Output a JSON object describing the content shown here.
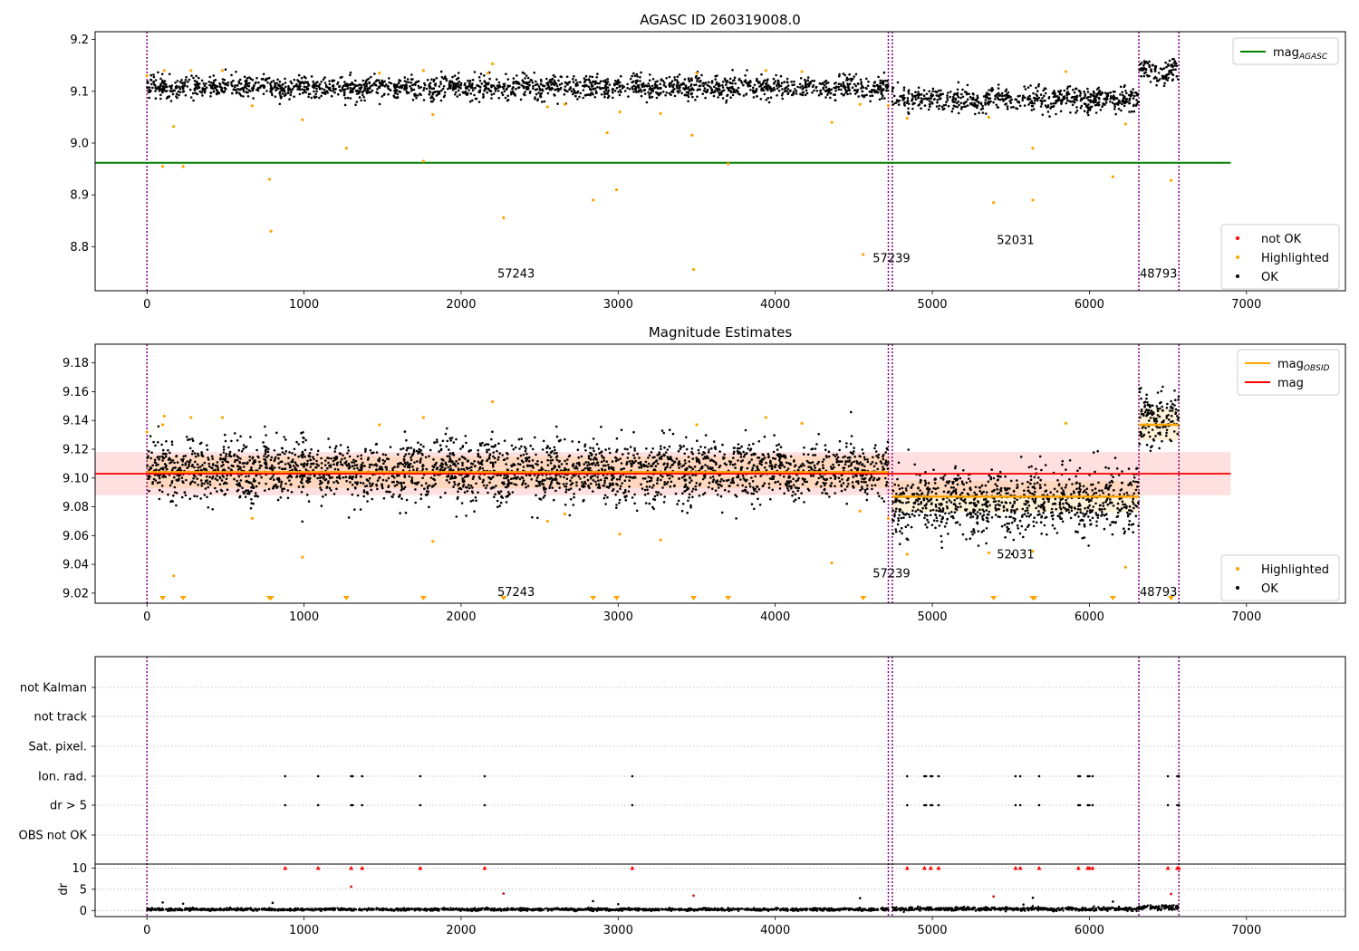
{
  "figure": {
    "x_ticks": [
      0,
      1000,
      2000,
      3000,
      4000,
      5000,
      6000,
      7000
    ],
    "xlim": [
      -330,
      7630
    ],
    "obs_boundaries": [
      0,
      4720,
      4745,
      6315,
      6570
    ],
    "obs_labels": [
      {
        "text": "57243",
        "x": 2350
      },
      {
        "text": "57239",
        "x": 4740
      },
      {
        "text": "52031",
        "x": 5530
      },
      {
        "text": "48793",
        "x": 6440
      }
    ]
  },
  "chart_data": [
    {
      "type": "scatter",
      "title": "AGASC ID 260319008.0",
      "ylim": [
        8.715,
        9.215
      ],
      "y_ticks": [
        8.8,
        8.9,
        9.0,
        9.1,
        9.2
      ],
      "y_tick_labels": [
        "8.8",
        "8.9",
        "9.0",
        "9.1",
        "9.2"
      ],
      "mag_agasc": 8.962,
      "mag_agasc_line_x": [
        -330,
        6900
      ],
      "label_y": [
        8.74,
        8.77,
        8.805,
        8.74
      ],
      "segments": [
        {
          "x0": 0,
          "x1": 4720,
          "center": 9.108,
          "spread": 0.011
        },
        {
          "x0": 4745,
          "x1": 6315,
          "center": 9.085,
          "spread": 0.011
        },
        {
          "x0": 6315,
          "x1": 6570,
          "center": 9.14,
          "spread": 0.011
        }
      ],
      "n_points": 2600,
      "highlighted": [
        [
          0,
          9.13
        ],
        [
          100,
          8.955
        ],
        [
          110,
          9.14
        ],
        [
          170,
          9.032
        ],
        [
          230,
          8.955
        ],
        [
          280,
          9.14
        ],
        [
          480,
          9.14
        ],
        [
          670,
          9.072
        ],
        [
          780,
          8.93
        ],
        [
          790,
          8.83
        ],
        [
          990,
          9.045
        ],
        [
          1270,
          8.99
        ],
        [
          1480,
          9.135
        ],
        [
          1760,
          9.14
        ],
        [
          1760,
          8.965
        ],
        [
          1820,
          9.055
        ],
        [
          2170,
          9.135
        ],
        [
          2200,
          9.153
        ],
        [
          2270,
          8.856
        ],
        [
          2550,
          9.07
        ],
        [
          2660,
          9.075
        ],
        [
          2840,
          8.89
        ],
        [
          2930,
          9.02
        ],
        [
          2990,
          8.91
        ],
        [
          3010,
          9.06
        ],
        [
          3270,
          9.057
        ],
        [
          3470,
          9.015
        ],
        [
          3480,
          8.756
        ],
        [
          3500,
          9.135
        ],
        [
          3700,
          8.96
        ],
        [
          3940,
          9.14
        ],
        [
          4170,
          9.138
        ],
        [
          4360,
          9.04
        ],
        [
          4540,
          9.075
        ],
        [
          4560,
          8.785
        ],
        [
          4720,
          9.072
        ],
        [
          4840,
          9.048
        ],
        [
          5360,
          9.05
        ],
        [
          5390,
          8.885
        ],
        [
          5640,
          8.89
        ],
        [
          5640,
          8.99
        ],
        [
          5850,
          9.138
        ],
        [
          6150,
          8.935
        ],
        [
          6230,
          9.037
        ],
        [
          6520,
          8.928
        ]
      ],
      "legend_top": [
        {
          "label": "mag",
          "sub": "AGASC",
          "color": "#008000"
        }
      ],
      "legend_bottom": [
        {
          "label": "not OK",
          "color": "#ff0000"
        },
        {
          "label": "Highlighted",
          "color": "#ffa500"
        },
        {
          "label": "OK",
          "color": "#000000"
        }
      ]
    },
    {
      "type": "scatter",
      "title": "Magnitude Estimates",
      "ylim": [
        9.013,
        9.193
      ],
      "y_ticks": [
        9.02,
        9.04,
        9.06,
        9.08,
        9.1,
        9.12,
        9.14,
        9.16,
        9.18
      ],
      "y_tick_labels": [
        "9.02",
        "9.04",
        "9.06",
        "9.08",
        "9.10",
        "9.12",
        "9.14",
        "9.16",
        "9.18"
      ],
      "mag": 9.103,
      "mag_band": [
        9.088,
        9.118
      ],
      "mag_line_x": [
        -330,
        6900
      ],
      "label_y": [
        9.018,
        9.031,
        9.044,
        9.018
      ],
      "obsid_mags": [
        {
          "x0": 0,
          "x1": 4720,
          "value": 9.104
        },
        {
          "x0": 4745,
          "x1": 6315,
          "value": 9.087
        },
        {
          "x0": 6315,
          "x1": 6570,
          "value": 9.137
        }
      ],
      "segments": [
        {
          "x0": 0,
          "x1": 4720,
          "center": 9.105,
          "spread": 0.01
        },
        {
          "x0": 4745,
          "x1": 6315,
          "center": 9.083,
          "spread": 0.011
        },
        {
          "x0": 6315,
          "x1": 6570,
          "center": 9.14,
          "spread": 0.011
        }
      ],
      "n_points": 3800,
      "highlighted": [
        [
          0,
          9.132
        ],
        [
          100,
          9.137
        ],
        [
          110,
          9.143
        ],
        [
          170,
          9.032
        ],
        [
          280,
          9.142
        ],
        [
          480,
          9.142
        ],
        [
          670,
          9.072
        ],
        [
          990,
          9.045
        ],
        [
          1480,
          9.137
        ],
        [
          1760,
          9.142
        ],
        [
          1820,
          9.056
        ],
        [
          2200,
          9.153
        ],
        [
          2550,
          9.07
        ],
        [
          2660,
          9.075
        ],
        [
          3010,
          9.061
        ],
        [
          3270,
          9.057
        ],
        [
          3500,
          9.137
        ],
        [
          3940,
          9.142
        ],
        [
          4170,
          9.138
        ],
        [
          4360,
          9.041
        ],
        [
          4540,
          9.077
        ],
        [
          4720,
          9.072
        ],
        [
          4840,
          9.047
        ],
        [
          5360,
          9.048
        ],
        [
          5640,
          9.049
        ],
        [
          5850,
          9.138
        ],
        [
          6230,
          9.038
        ]
      ],
      "below_range_x": [
        100,
        230,
        780,
        790,
        1270,
        1760,
        2270,
        2840,
        2990,
        3480,
        3700,
        4560,
        5390,
        5640,
        5650,
        6150,
        6520
      ],
      "legend_top": [
        {
          "label": "mag",
          "sub": "OBSID",
          "color": "#ffa500"
        },
        {
          "label": "mag",
          "sub": "",
          "color": "#ff0000"
        }
      ],
      "legend_bottom": [
        {
          "label": "Highlighted",
          "color": "#ffa500"
        },
        {
          "label": "OK",
          "color": "#000000"
        }
      ]
    },
    {
      "type": "scatter",
      "flag_rows": [
        "not Kalman",
        "not track",
        "Sat. pixel.",
        "Ion. rad.",
        "dr > 5",
        "OBS not OK"
      ],
      "flag_events_x": [
        880,
        1090,
        1300,
        1310,
        1370,
        1740,
        2150,
        3090,
        4840,
        4950,
        4960,
        4990,
        5000,
        5040,
        5530,
        5560,
        5680,
        5930,
        5940,
        5990,
        6000,
        6020,
        6500,
        6560,
        6570
      ],
      "dr_ylabel": "dr",
      "dr_ylim": [
        -1,
        10.5
      ],
      "dr_ticks": [
        0,
        5,
        10
      ],
      "dr_tick_labels": [
        "0",
        "5",
        "10"
      ],
      "dr_outliers": [
        [
          1300,
          5.6
        ],
        [
          2270,
          4.0
        ],
        [
          3480,
          3.5
        ],
        [
          5390,
          3.3
        ],
        [
          5640,
          3.0
        ],
        [
          6520,
          3.9
        ],
        [
          800,
          1.8
        ],
        [
          4540,
          2.9
        ],
        [
          2840,
          2.2
        ],
        [
          100,
          1.9
        ],
        [
          230,
          1.6
        ],
        [
          3000,
          1.5
        ],
        [
          5580,
          1.4
        ],
        [
          6150,
          2.1
        ]
      ],
      "dr_clipped_x": [
        880,
        1090,
        1300,
        1370,
        1740,
        2150,
        3090,
        4840,
        4950,
        4990,
        5040,
        5530,
        5560,
        5680,
        5930,
        5990,
        6000,
        6020,
        6500,
        6560,
        6570
      ],
      "dr_segments": [
        {
          "x0": 0,
          "x1": 4720,
          "center": 0.25,
          "spread": 0.15
        },
        {
          "x0": 4745,
          "x1": 6315,
          "center": 0.35,
          "spread": 0.2
        },
        {
          "x0": 6315,
          "x1": 6570,
          "center": 0.7,
          "spread": 0.3
        }
      ],
      "n_points": 2600
    }
  ]
}
